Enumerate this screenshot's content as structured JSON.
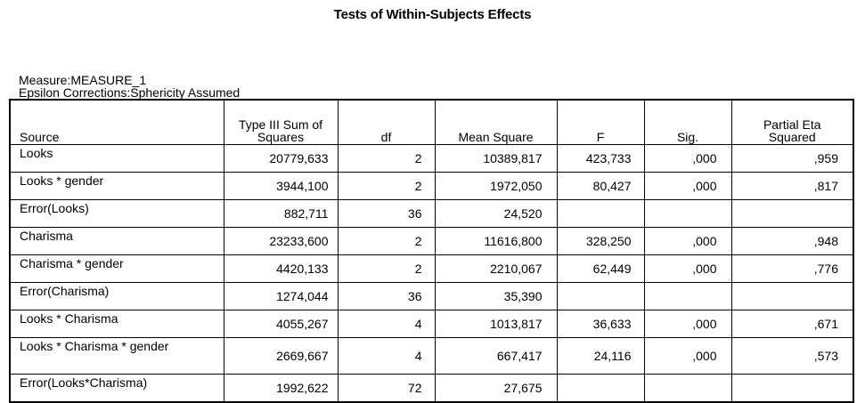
{
  "title": "Tests of Within-Subjects Effects",
  "measure_line": "Measure:MEASURE_1",
  "epsilon_line": "Epsilon Corrections:Sphericity Assumed",
  "columns": {
    "source": "Source",
    "ss": "Type III Sum of Squares",
    "df": "df",
    "ms": "Mean Square",
    "f": "F",
    "sig": "Sig.",
    "eta": "Partial Eta Squared"
  },
  "rows": [
    {
      "source": "Looks",
      "ss": "20779,633",
      "df": "2",
      "ms": "10389,817",
      "f": "423,733",
      "sig": ",000",
      "eta": ",959"
    },
    {
      "source": "Looks * gender",
      "ss": "3944,100",
      "df": "2",
      "ms": "1972,050",
      "f": "80,427",
      "sig": ",000",
      "eta": ",817"
    },
    {
      "source": "Error(Looks)",
      "ss": "882,711",
      "df": "36",
      "ms": "24,520",
      "f": "",
      "sig": "",
      "eta": ""
    },
    {
      "source": "Charisma",
      "ss": "23233,600",
      "df": "2",
      "ms": "11616,800",
      "f": "328,250",
      "sig": ",000",
      "eta": ",948"
    },
    {
      "source": "Charisma * gender",
      "ss": "4420,133",
      "df": "2",
      "ms": "2210,067",
      "f": "62,449",
      "sig": ",000",
      "eta": ",776"
    },
    {
      "source": "Error(Charisma)",
      "ss": "1274,044",
      "df": "36",
      "ms": "35,390",
      "f": "",
      "sig": "",
      "eta": ""
    },
    {
      "source": "Looks * Charisma",
      "ss": "4055,267",
      "df": "4",
      "ms": "1013,817",
      "f": "36,633",
      "sig": ",000",
      "eta": ",671"
    },
    {
      "source": "Looks * Charisma * gender",
      "ss": "2669,667",
      "df": "4",
      "ms": "667,417",
      "f": "24,116",
      "sig": ",000",
      "eta": ",573"
    },
    {
      "source": "Error(Looks*Charisma)",
      "ss": "1992,622",
      "df": "72",
      "ms": "27,675",
      "f": "",
      "sig": "",
      "eta": ""
    }
  ]
}
